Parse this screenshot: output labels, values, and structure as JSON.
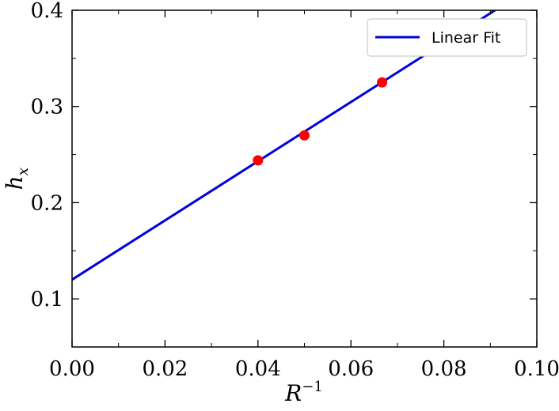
{
  "chart_data": {
    "type": "scatter",
    "title": "",
    "xlabel": "R",
    "xlabel_superscript": "−1",
    "ylabel": "h",
    "ylabel_subscript": "x",
    "xlim": [
      0.0,
      0.1
    ],
    "ylim": [
      0.05,
      0.4
    ],
    "x_ticks": [
      0.0,
      0.02,
      0.04,
      0.06,
      0.08,
      0.1
    ],
    "x_tick_labels": [
      "0.00",
      "0.02",
      "0.04",
      "0.06",
      "0.08",
      "0.10"
    ],
    "y_ticks": [
      0.1,
      0.2,
      0.3,
      0.4
    ],
    "y_tick_labels": [
      "0.1",
      "0.2",
      "0.3",
      "0.4"
    ],
    "grid": false,
    "legend_position": "top-right",
    "series": [
      {
        "kind": "scatter",
        "color": "#ff0000",
        "points": [
          {
            "x": 0.04,
            "y": 0.244
          },
          {
            "x": 0.05,
            "y": 0.27
          },
          {
            "x": 0.0667,
            "y": 0.325
          }
        ]
      },
      {
        "kind": "line",
        "name": "Linear Fit",
        "color": "#0000dd",
        "points": [
          {
            "x": 0.0,
            "y": 0.12
          },
          {
            "x": 0.091,
            "y": 0.4
          }
        ]
      }
    ]
  }
}
